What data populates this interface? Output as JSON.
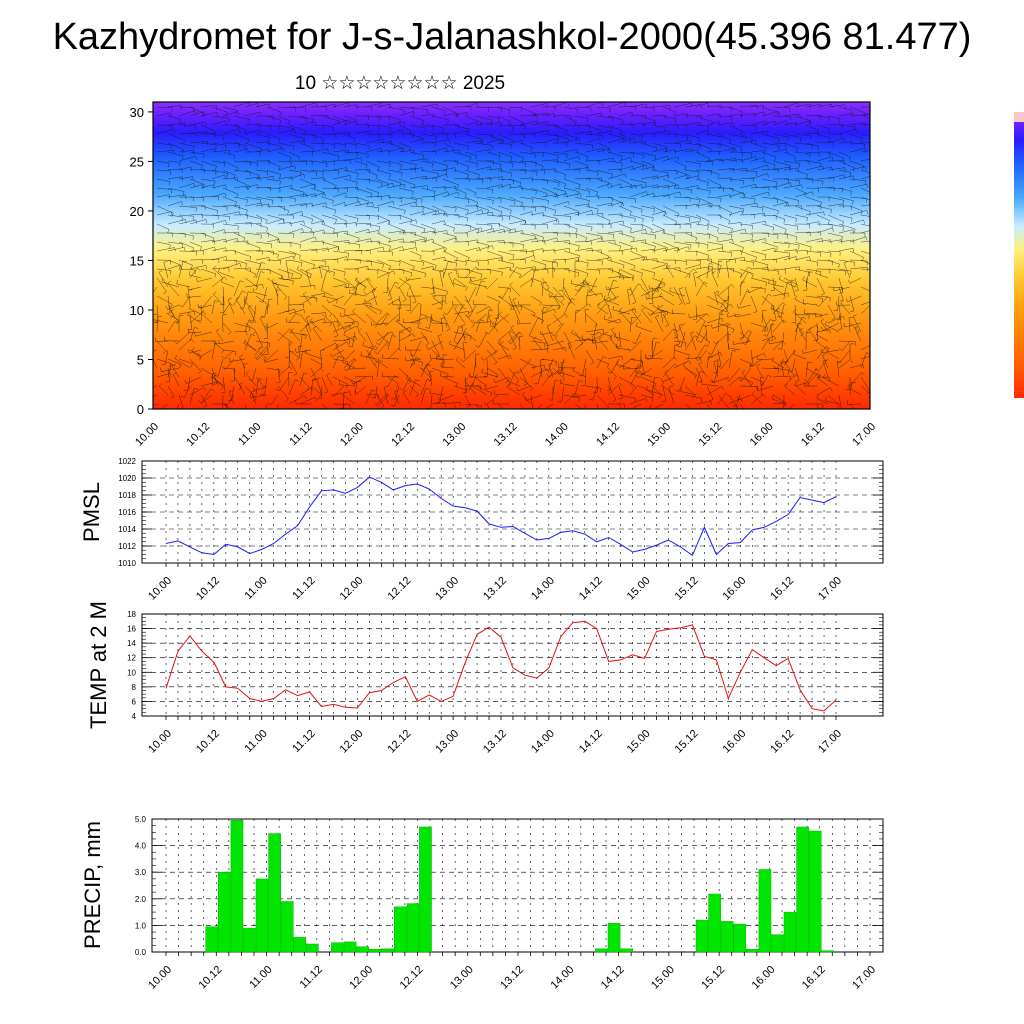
{
  "title": "Kazhydromet for J-s-Jalanashkol-2000(45.396 81.477)",
  "subtitle": "10 ☆☆☆☆☆☆☆☆ 2025",
  "colors": {
    "pmsl_line": "#1a1aff",
    "temp_line": "#e61010",
    "precip_bar": "#00e600",
    "precip_bar_edge": "#00b400",
    "wind_barb": "#111111"
  },
  "chart_data": [
    {
      "type": "heatmap",
      "name": "vertical-section",
      "x_labels": [
        "10.00",
        "10.12",
        "11.00",
        "11.12",
        "12.00",
        "12.12",
        "13.00",
        "13.12",
        "14.00",
        "14.12",
        "15.00",
        "15.12",
        "16.00",
        "16.12",
        "17.00"
      ],
      "x_range": [
        0,
        14
      ],
      "ylim": [
        0,
        31
      ],
      "y_ticks": [
        0,
        5,
        10,
        15,
        20,
        25,
        30
      ],
      "colorbar": [
        "#ff2a00",
        "#ff6000",
        "#ff9a10",
        "#ffc830",
        "#fff080",
        "#c8ecff",
        "#4aa8ff",
        "#1e5fff",
        "#2a1cff",
        "#6a20ff",
        "#8a30ff"
      ],
      "colorbar_top": "#f4c8c8",
      "colorbar_stops": [
        0,
        0.12,
        0.3,
        0.42,
        0.52,
        0.6,
        0.7,
        0.82,
        0.9,
        0.96,
        1.0
      ],
      "wind_overlay": true
    },
    {
      "type": "line",
      "name": "pmsl",
      "ylabel": "PMSL",
      "ylim": [
        1010,
        1022
      ],
      "y_ticks": [
        1010,
        1012,
        1014,
        1016,
        1018,
        1020,
        1022
      ],
      "x_labels": [
        "10.00",
        "10.12",
        "11.00",
        "11.12",
        "12.00",
        "12.12",
        "13.00",
        "13.12",
        "14.00",
        "14.12",
        "15.00",
        "15.12",
        "16.00",
        "16.12",
        "17.00"
      ],
      "step_hours": 3,
      "values": [
        1012.3,
        1012.6,
        1011.9,
        1011.2,
        1011.0,
        1012.2,
        1011.9,
        1011.1,
        1011.6,
        1012.3,
        1013.4,
        1014.4,
        1016.6,
        1018.5,
        1018.6,
        1018.2,
        1018.9,
        1020.1,
        1019.5,
        1018.6,
        1019.1,
        1019.3,
        1018.7,
        1017.6,
        1016.7,
        1016.5,
        1016.1,
        1014.6,
        1014.2,
        1014.3,
        1013.5,
        1012.7,
        1012.9,
        1013.6,
        1013.8,
        1013.4,
        1012.5,
        1013.0,
        1012.2,
        1011.3,
        1011.6,
        1012.1,
        1012.7,
        1011.9,
        1010.9,
        1014.2,
        1011.0,
        1012.3,
        1012.4,
        1013.9,
        1014.2,
        1014.9,
        1015.7,
        1017.7,
        1017.4,
        1017.1,
        1017.8
      ]
    },
    {
      "type": "line",
      "name": "temp-2m",
      "ylabel": "TEMP at 2 M",
      "ylim": [
        4,
        18
      ],
      "y_ticks": [
        4,
        6,
        8,
        10,
        12,
        14,
        16,
        18
      ],
      "x_labels": [
        "10.00",
        "10.12",
        "11.00",
        "11.12",
        "12.00",
        "12.12",
        "13.00",
        "13.12",
        "14.00",
        "14.12",
        "15.00",
        "15.12",
        "16.00",
        "16.12",
        "17.00"
      ],
      "step_hours": 3,
      "values": [
        7.8,
        12.9,
        15.0,
        12.9,
        11.4,
        8.0,
        7.8,
        6.4,
        6.0,
        6.4,
        7.6,
        6.8,
        7.3,
        5.3,
        5.6,
        5.2,
        5.1,
        7.2,
        7.5,
        8.6,
        9.4,
        6.0,
        6.9,
        6.0,
        6.7,
        11.3,
        15.2,
        16.2,
        14.8,
        10.6,
        9.6,
        9.2,
        10.6,
        14.9,
        16.8,
        17.0,
        16.0,
        11.5,
        11.7,
        12.4,
        11.9,
        15.6,
        15.9,
        16.1,
        16.5,
        12.2,
        11.7,
        6.4,
        10.0,
        13.1,
        12.0,
        10.9,
        11.9,
        7.6,
        5.0,
        4.7,
        6.2
      ]
    },
    {
      "type": "bar",
      "name": "precip",
      "ylabel": "PRECIP, mm",
      "ylim": [
        0,
        5
      ],
      "y_ticks": [
        "0.0",
        "1.0",
        "2.0",
        "3.0",
        "4.0",
        "5.0"
      ],
      "x_labels": [
        "10.00",
        "10.12",
        "11.00",
        "11.12",
        "12.00",
        "12.12",
        "13.00",
        "13.12",
        "14.00",
        "14.12",
        "15.00",
        "15.12",
        "16.00",
        "16.12",
        "17.00"
      ],
      "step_hours": 3,
      "values": [
        0,
        0,
        0,
        0.95,
        3.0,
        4.95,
        0.9,
        2.75,
        4.45,
        1.9,
        0.55,
        0.3,
        0,
        0.35,
        0.38,
        0.2,
        0.1,
        0.12,
        1.7,
        1.82,
        4.7,
        0,
        0,
        0,
        0,
        0,
        0,
        0,
        0,
        0,
        0,
        0,
        0,
        0,
        0.12,
        1.08,
        0.12,
        0,
        0,
        0,
        0,
        0,
        1.2,
        2.18,
        1.15,
        1.05,
        0.1,
        3.1,
        0.65,
        1.5,
        4.7,
        4.55,
        0.05,
        0,
        0,
        0,
        0
      ]
    }
  ]
}
